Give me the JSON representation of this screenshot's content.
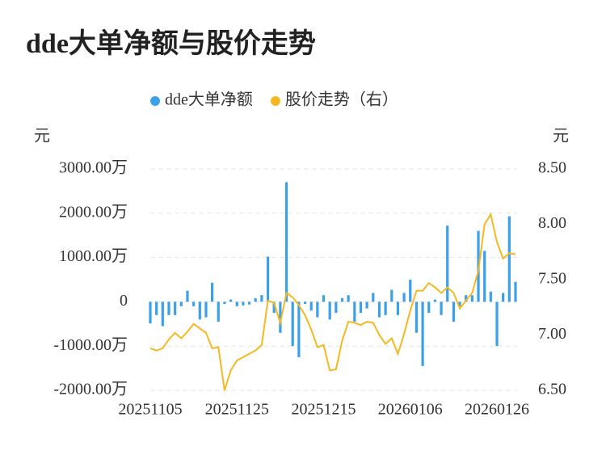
{
  "chart_data": {
    "type": "bar-line",
    "title": "dde大单净额与股价走势",
    "y_label": "元",
    "y2_label": "元",
    "categories": [
      "20251105",
      null,
      null,
      null,
      null,
      null,
      null,
      null,
      null,
      null,
      null,
      null,
      null,
      null,
      "20251125",
      null,
      null,
      null,
      null,
      null,
      null,
      null,
      null,
      null,
      null,
      null,
      null,
      null,
      "20251215",
      null,
      null,
      null,
      null,
      null,
      null,
      null,
      null,
      null,
      null,
      null,
      null,
      null,
      "20260106",
      null,
      null,
      null,
      null,
      null,
      null,
      null,
      null,
      null,
      null,
      null,
      null,
      null,
      "20260126",
      null,
      null,
      null
    ],
    "series": [
      {
        "name": "dde大单净额",
        "type": "bar",
        "color": "#3ba0e8",
        "values": [
          -490,
          -300,
          -550,
          -300,
          -300,
          -100,
          250,
          -100,
          -400,
          -350,
          430,
          -450,
          -50,
          50,
          -100,
          -80,
          -60,
          80,
          150,
          1020,
          -250,
          -700,
          2700,
          -1000,
          -1250,
          -50,
          -200,
          -350,
          150,
          -400,
          -250,
          80,
          150,
          -450,
          -250,
          -150,
          200,
          -350,
          -300,
          270,
          -300,
          200,
          500,
          -700,
          -1450,
          -250,
          50,
          -300,
          1720,
          -450,
          -100,
          150,
          150,
          1600,
          1150,
          230,
          -1000,
          200,
          1930,
          450
        ]
      },
      {
        "name": "股价走势（右）",
        "type": "line",
        "axis": "y2",
        "color": "#f5b821",
        "values": [
          6.88,
          6.86,
          6.88,
          6.96,
          7.02,
          6.97,
          7.03,
          7.1,
          7.06,
          7.02,
          6.88,
          6.89,
          6.5,
          6.68,
          6.77,
          6.8,
          6.83,
          6.86,
          6.91,
          7.31,
          7.29,
          7.11,
          7.38,
          7.34,
          7.27,
          7.18,
          7.05,
          6.89,
          6.91,
          6.68,
          6.69,
          6.95,
          7.12,
          7.11,
          7.09,
          7.12,
          7.11,
          7.0,
          6.92,
          6.97,
          6.83,
          7.01,
          7.22,
          7.4,
          7.4,
          7.47,
          7.43,
          7.38,
          7.43,
          7.38,
          7.24,
          7.31,
          7.38,
          7.58,
          8.0,
          8.09,
          7.84,
          7.69,
          7.74,
          7.73
        ]
      }
    ],
    "ylim": [
      -2000,
      3000
    ],
    "yticks": [
      {
        "value": -2000,
        "label": "-2000.00万"
      },
      {
        "value": -1000,
        "label": "-1000.00万"
      },
      0,
      {
        "value": 1000,
        "label": "1000.00万"
      },
      {
        "value": 2000,
        "label": "2000.00万"
      },
      {
        "value": 3000,
        "label": "3000.00万"
      }
    ],
    "y2lim": [
      6.5,
      8.5
    ],
    "y2ticks": [
      {
        "value": 6.5,
        "label": "6.50"
      },
      {
        "value": 7,
        "label": "7.00"
      },
      {
        "value": 7.5,
        "label": "7.50"
      },
      {
        "value": 8,
        "label": "8.00"
      },
      {
        "value": 8.5,
        "label": "8.50"
      }
    ],
    "grid": true
  }
}
